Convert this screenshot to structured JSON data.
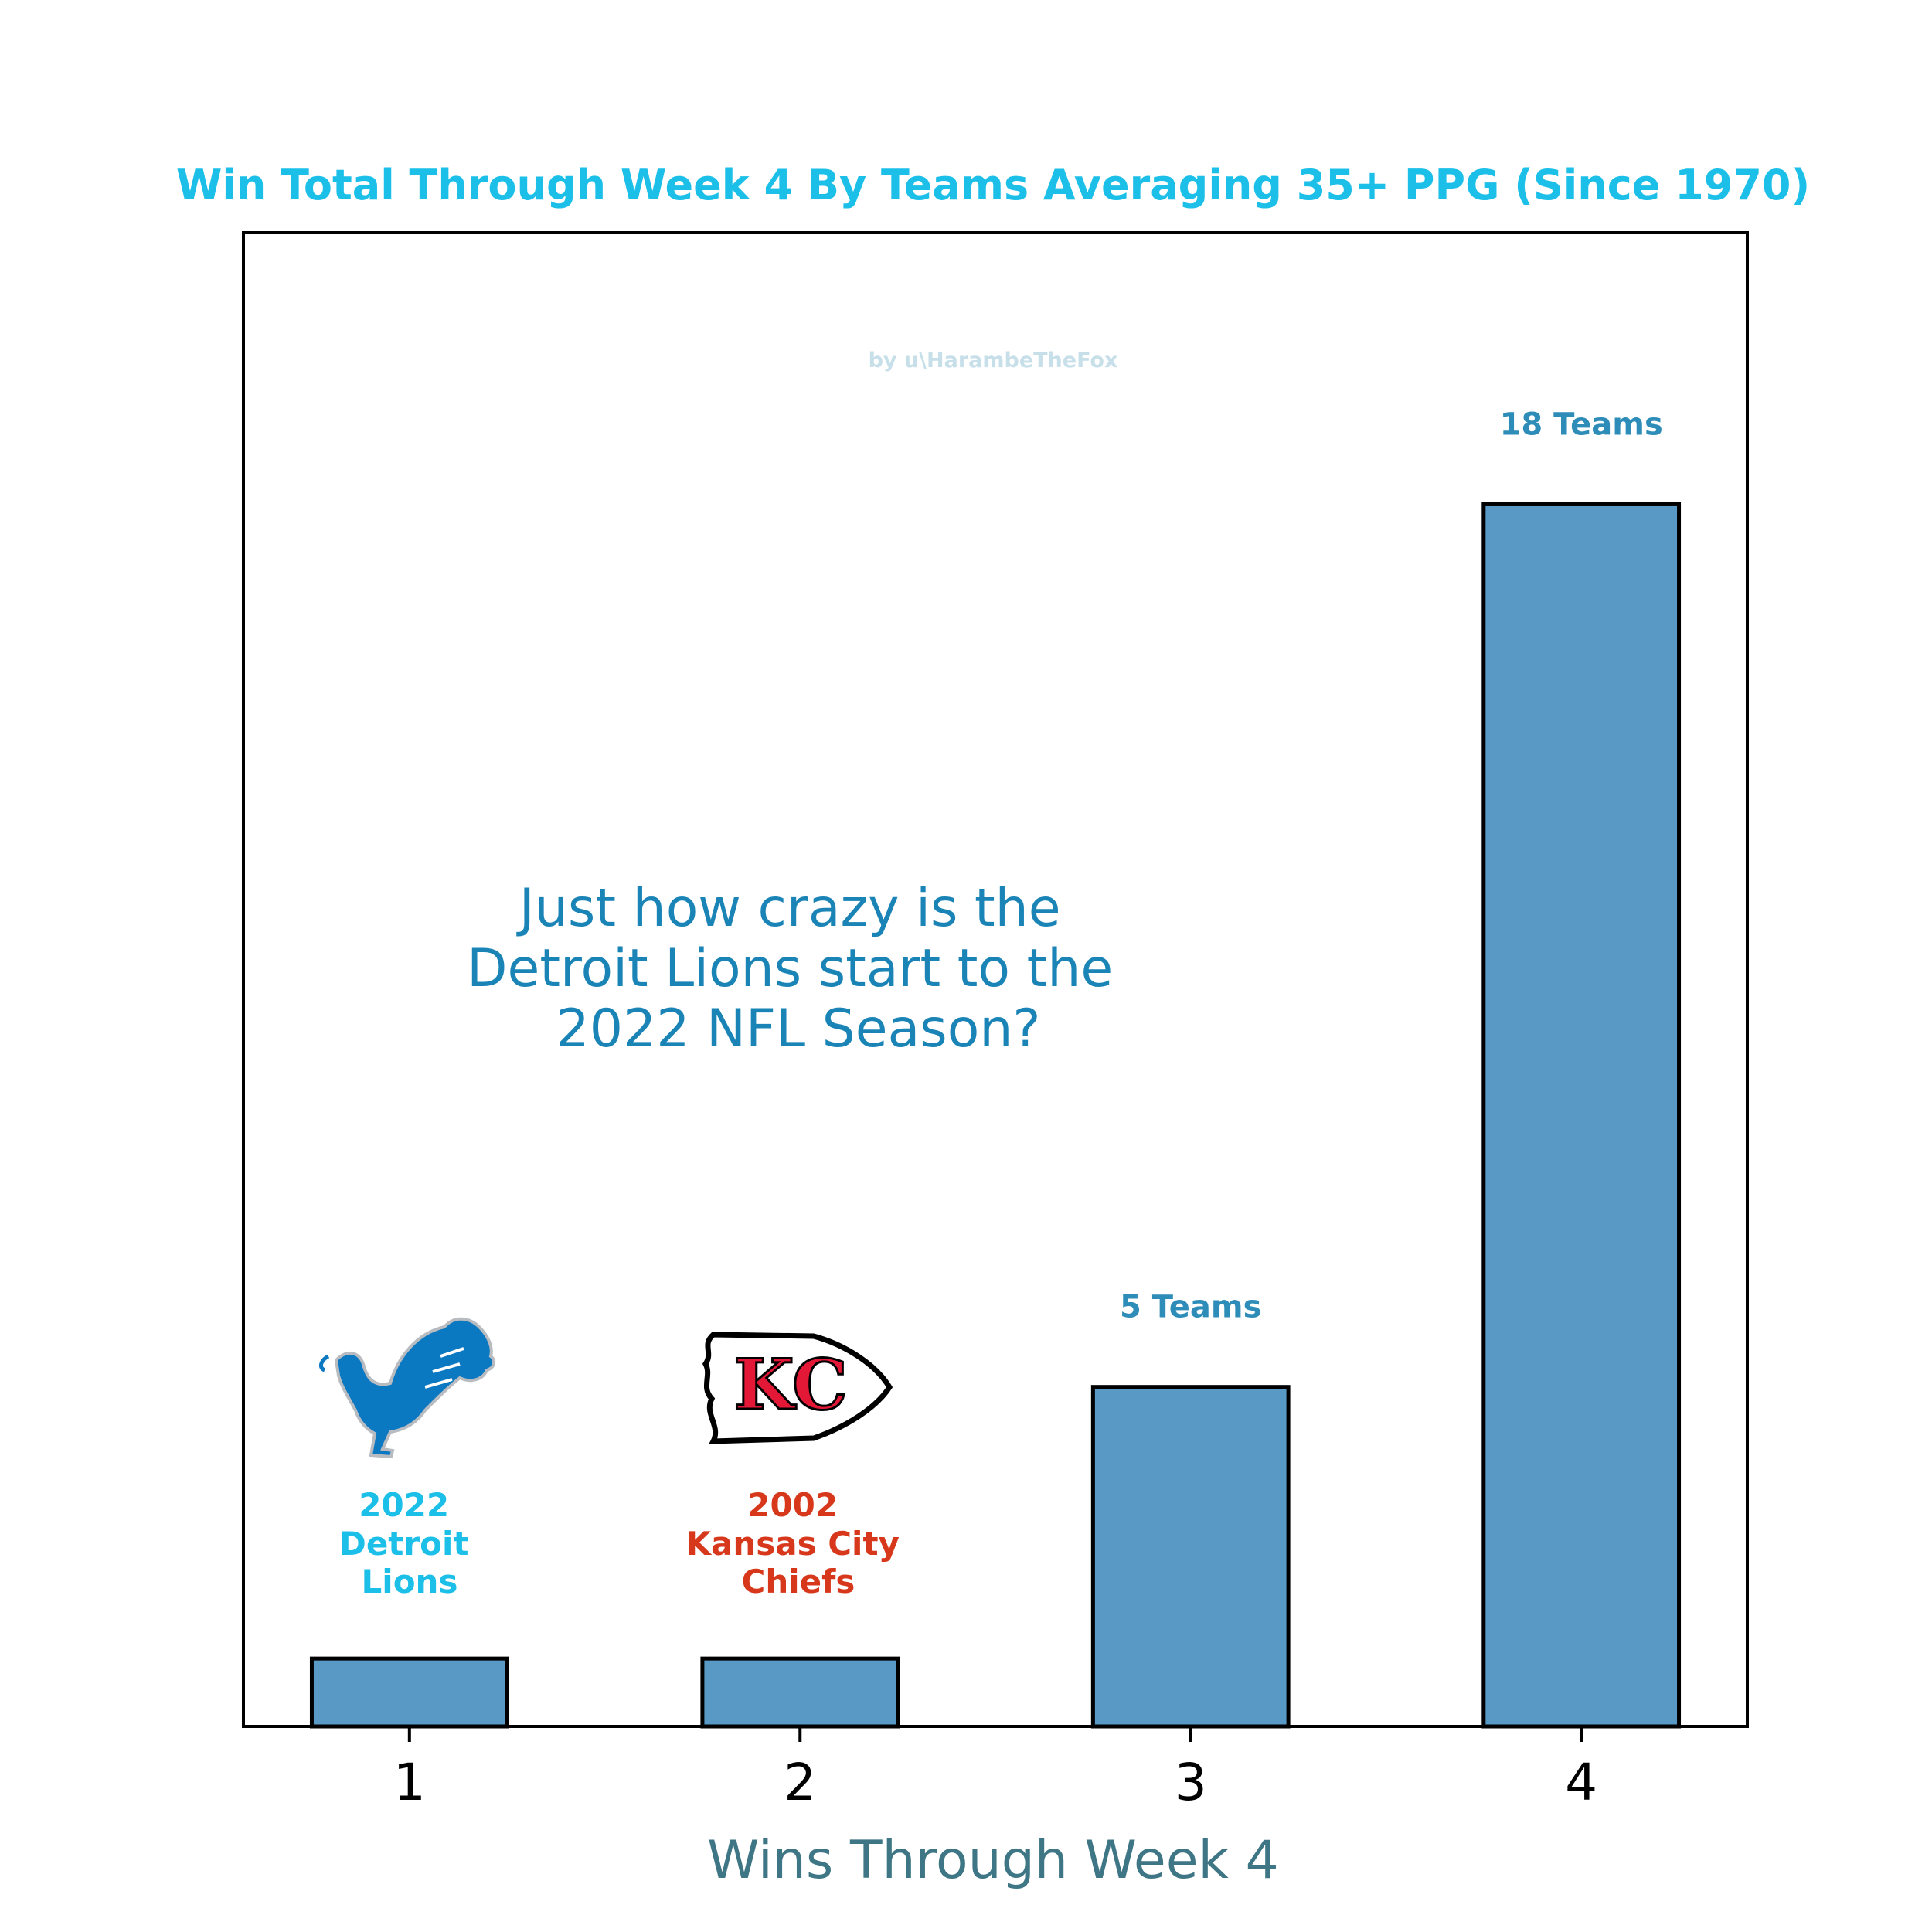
{
  "chart_data": {
    "type": "bar",
    "title": "Win Total Through Week 4 By Teams Averaging 35+ PPG (Since 1970)",
    "xlabel": "Wins Through Week 4",
    "ylabel": "",
    "categories": [
      "1",
      "2",
      "3",
      "4"
    ],
    "values": [
      1,
      1,
      5,
      18
    ],
    "ylim": [
      0,
      22
    ],
    "grid": false,
    "bar_labels": [
      "",
      "",
      "5 Teams",
      "18 Teams"
    ],
    "team_annotations": [
      {
        "category": "1",
        "lines": [
          "2022",
          "Detroit",
          "Lions"
        ],
        "logo": "detroit-lions-logo"
      },
      {
        "category": "2",
        "lines": [
          "2002",
          "Kansas City",
          "Chiefs"
        ],
        "logo": "kansas-city-chiefs-logo"
      }
    ],
    "annotation": [
      "Just how crazy is the",
      "Detroit Lions start to the",
      "2022 NFL Season?"
    ],
    "watermark": "by u\\HarambeTheFox"
  },
  "colors": {
    "bar": "#5899c6",
    "title": "#1cbfe8",
    "bar_label": "#2e8db8",
    "lions": "#1cbfe8",
    "chiefs": "#d7381c",
    "annotation": "#1a84b6",
    "xlabel": "#3e7685",
    "watermark": "#c7dfe9"
  }
}
